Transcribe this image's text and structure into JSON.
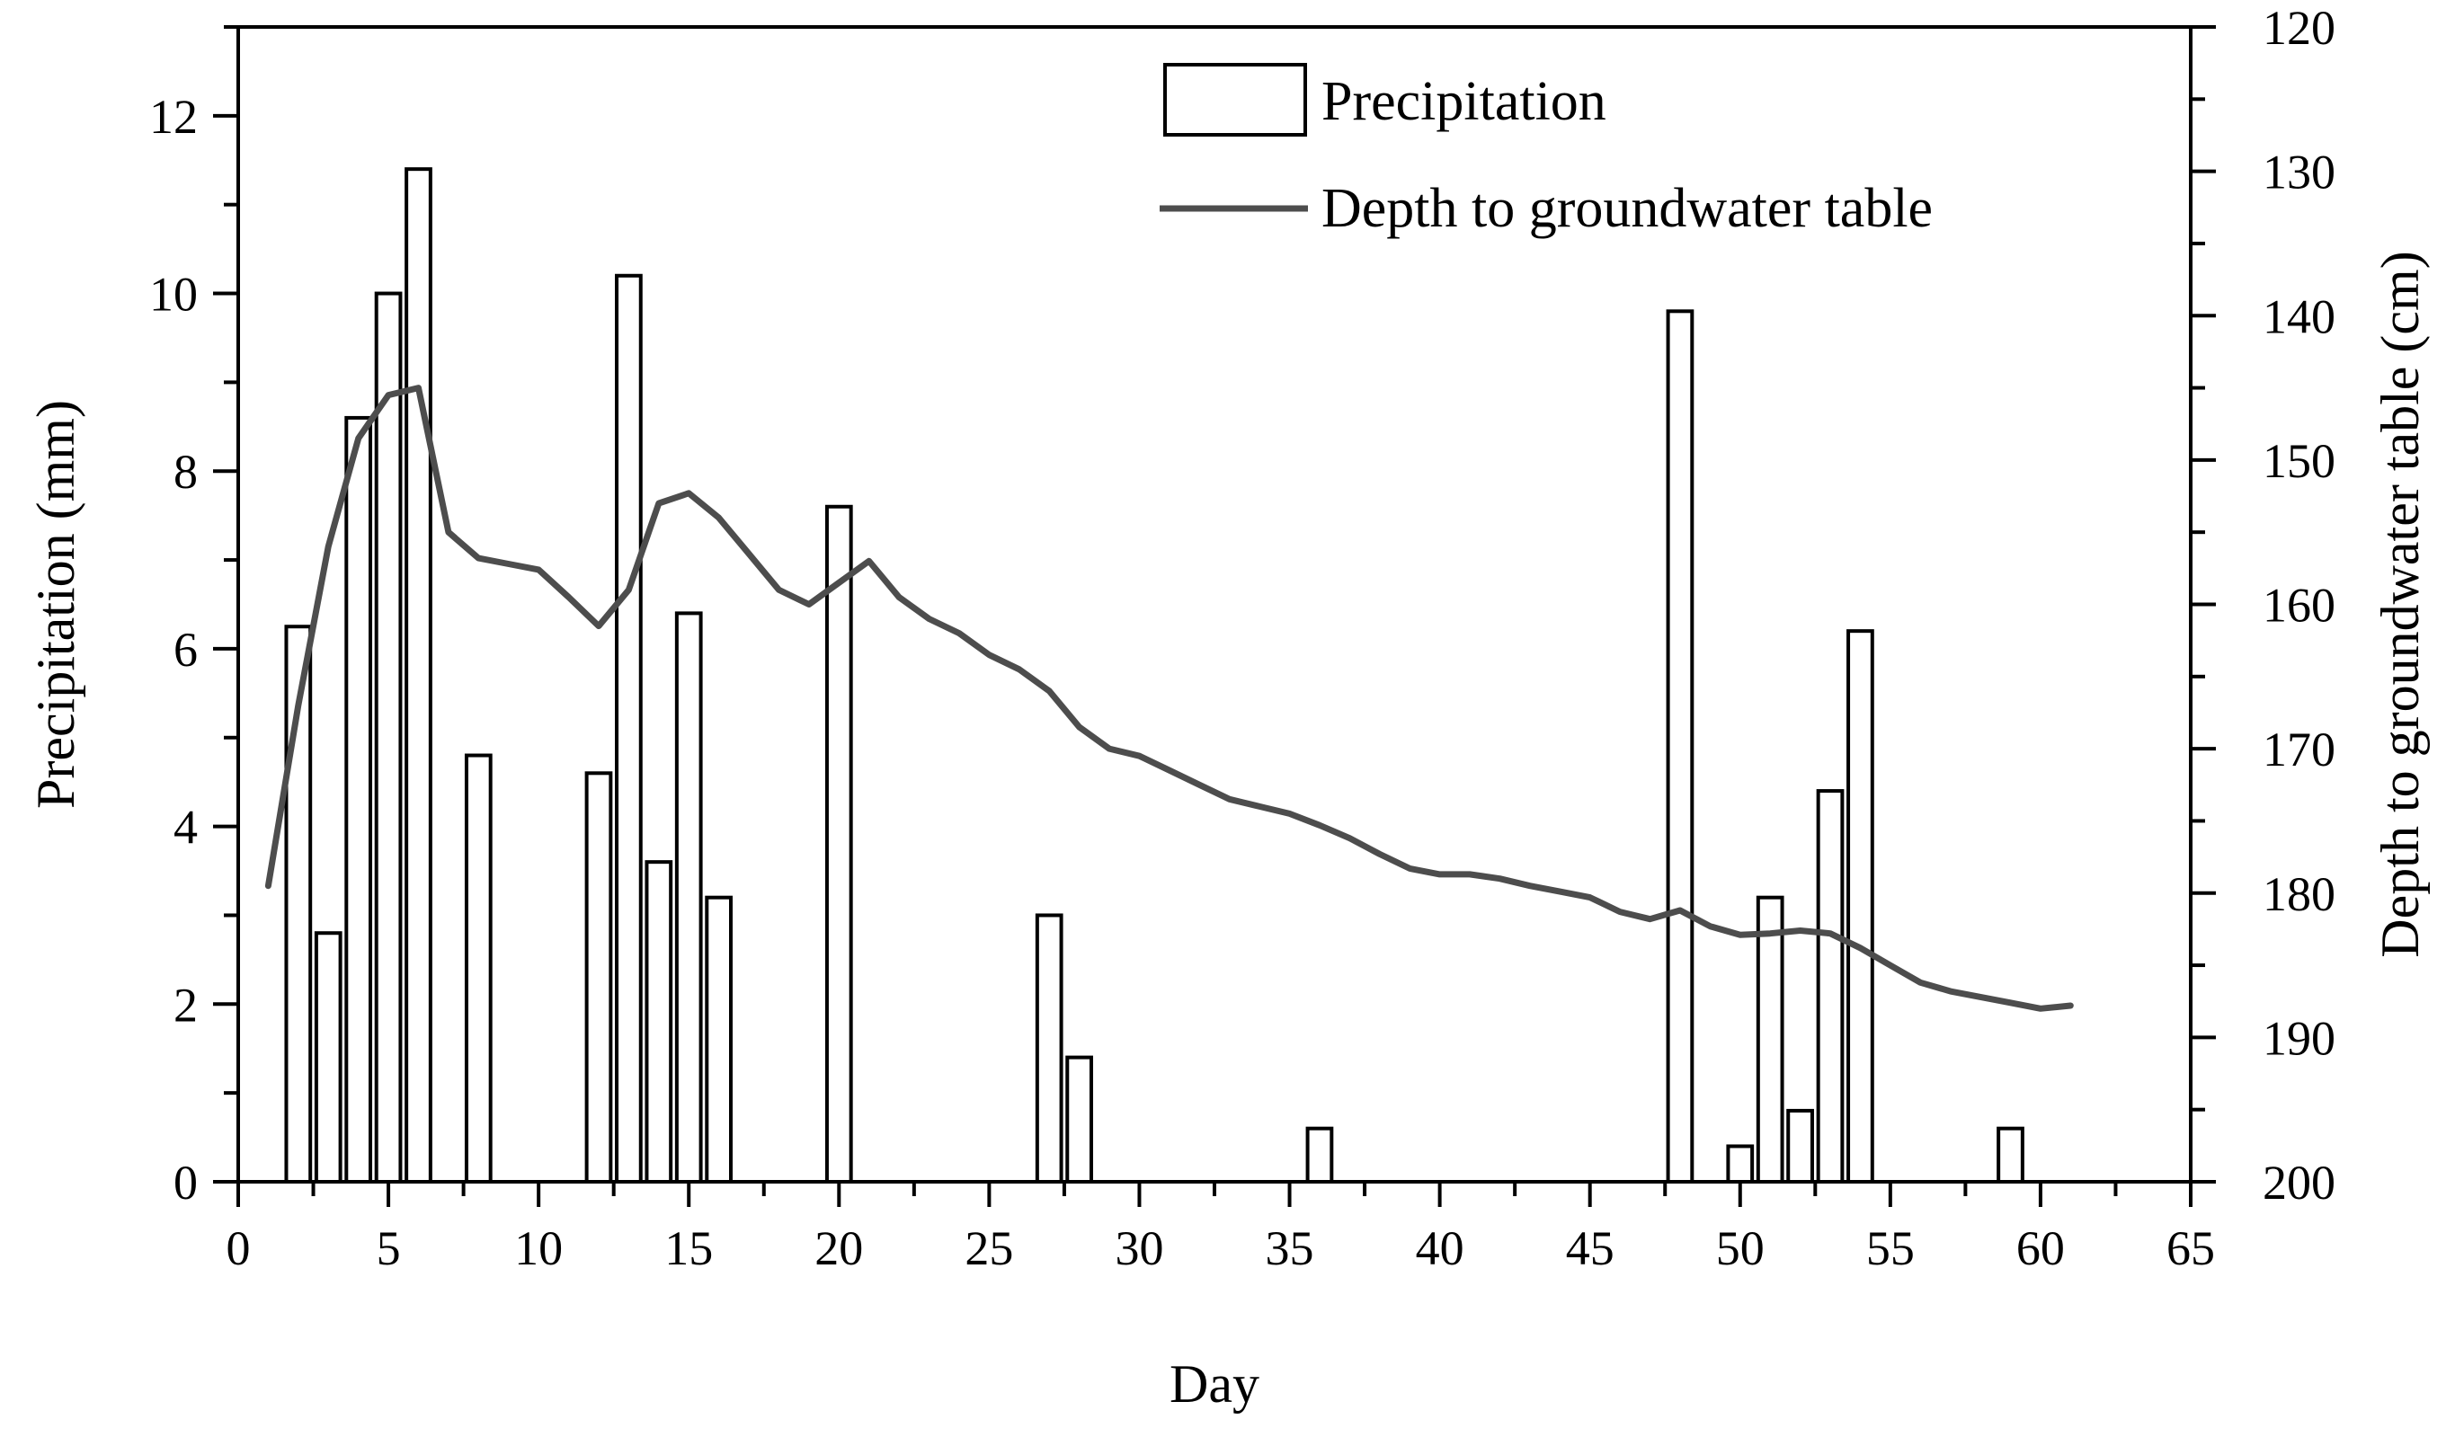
{
  "chart_data": {
    "type": "bar+line",
    "title": "",
    "xlabel": "Day",
    "ylabel_left": "Precipitation (mm)",
    "ylabel_right": "Depth to groundwater table (cm)",
    "xlim": [
      0,
      65
    ],
    "x_ticks": [
      0,
      5,
      10,
      15,
      20,
      25,
      30,
      35,
      40,
      45,
      50,
      55,
      60,
      65
    ],
    "ylim_left": [
      0,
      13
    ],
    "y_ticks_left": [
      0,
      2,
      4,
      6,
      8,
      10,
      12
    ],
    "ylim_right": [
      120,
      200
    ],
    "right_axis_inverted": true,
    "y_ticks_right": [
      120,
      130,
      140,
      150,
      160,
      170,
      180,
      190,
      200
    ],
    "legend_position": "top-right",
    "series": [
      {
        "name": "Precipitation",
        "type": "bar",
        "axis": "left",
        "x": [
          2,
          3,
          4,
          5,
          6,
          8,
          12,
          13,
          14,
          15,
          16,
          20,
          27,
          28,
          36,
          48,
          50,
          51,
          52,
          53,
          54,
          59
        ],
        "values": [
          6.25,
          2.8,
          8.6,
          10.0,
          11.4,
          4.8,
          4.6,
          10.2,
          3.6,
          6.4,
          3.2,
          7.6,
          3.0,
          1.4,
          0.6,
          9.8,
          0.4,
          3.2,
          0.8,
          4.4,
          6.2,
          0.6
        ]
      },
      {
        "name": "Depth to groundwater table",
        "type": "line",
        "axis": "right",
        "color": "#4d4d4d",
        "x": [
          1,
          2,
          3,
          4,
          5,
          6,
          7,
          8,
          9,
          10,
          11,
          12,
          13,
          14,
          15,
          16,
          17,
          18,
          19,
          20,
          21,
          22,
          23,
          24,
          25,
          26,
          27,
          28,
          29,
          30,
          31,
          32,
          33,
          34,
          35,
          36,
          37,
          38,
          39,
          40,
          41,
          42,
          43,
          44,
          45,
          46,
          47,
          48,
          49,
          50,
          51,
          52,
          53,
          54,
          55,
          56,
          57,
          58,
          59,
          60,
          61
        ],
        "values": [
          179.5,
          167,
          156,
          148.5,
          145.5,
          145,
          155,
          156.8,
          157.2,
          157.6,
          159.5,
          161.5,
          159,
          153,
          152.3,
          154,
          156.5,
          159,
          160,
          158.5,
          157,
          159.5,
          161,
          162,
          163.5,
          164.5,
          166,
          168.5,
          170,
          170.5,
          171.5,
          172.5,
          173.5,
          174,
          174.5,
          175.3,
          176.2,
          177.3,
          178.3,
          178.7,
          178.7,
          179,
          179.5,
          179.9,
          180.3,
          181.3,
          181.8,
          181.2,
          182.3,
          182.9,
          182.8,
          182.6,
          182.8,
          183.8,
          185,
          186.2,
          186.8,
          187.2,
          187.6,
          188,
          187.8
        ]
      }
    ]
  }
}
